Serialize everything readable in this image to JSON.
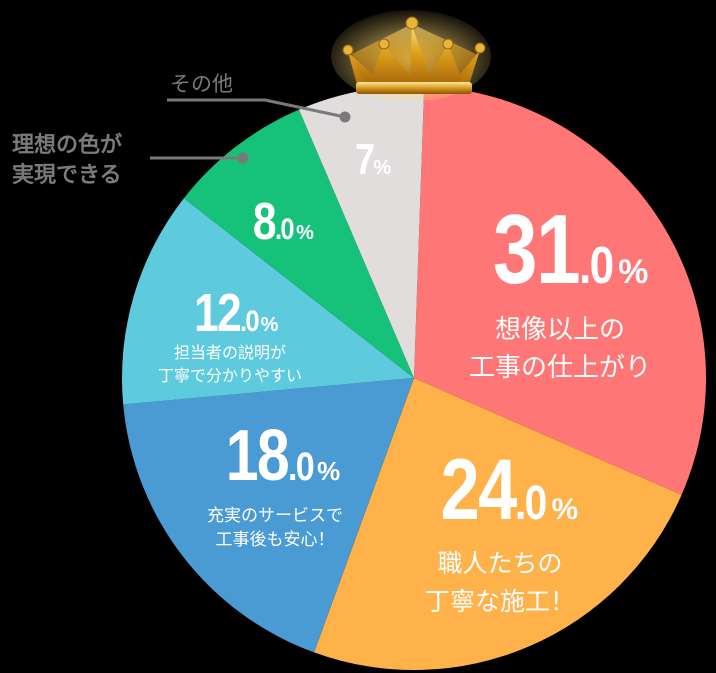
{
  "chart_data": {
    "type": "pie",
    "title": "",
    "start_angle_deg": 2,
    "direction": "clockwise",
    "slices": [
      {
        "label": "想像以上の工事の仕上がり",
        "value": 31.0,
        "display_int": "31",
        "display_dec": ".0",
        "display_pct": "%",
        "desc_lines": [
          "想像以上の",
          "工事の仕上がり"
        ],
        "color": "#FF7676"
      },
      {
        "label": "職人たちの丁寧な施工！",
        "value": 24.0,
        "display_int": "24",
        "display_dec": ".0",
        "display_pct": "%",
        "desc_lines": [
          "職人たちの",
          "丁寧な施工！"
        ],
        "color": "#FFB14A"
      },
      {
        "label": "充実のサービスで工事後も安心！",
        "value": 18.0,
        "display_int": "18",
        "display_dec": ".0",
        "display_pct": "%",
        "desc_lines": [
          "充実のサービスで",
          "工事後も安心！"
        ],
        "color": "#4A9BD3"
      },
      {
        "label": "担当者の説明が丁寧で分かりやすい",
        "value": 12.0,
        "display_int": "12",
        "display_dec": ".0",
        "display_pct": "%",
        "desc_lines": [
          "担当者の説明が",
          "丁寧で分かりやすい"
        ],
        "color": "#5ECADD"
      },
      {
        "label": "理想の色が実現できる",
        "value": 8.0,
        "display_int": "8",
        "display_dec": ".0",
        "display_pct": "%",
        "desc_lines": [
          "理想の色が",
          "実現できる"
        ],
        "color": "#16C27A"
      },
      {
        "label": "その他",
        "value": 7,
        "display_int": "7",
        "display_dec": "",
        "display_pct": "%",
        "desc_lines": [
          "その他"
        ],
        "color": "#E2DDDD"
      }
    ],
    "legend": "none",
    "annotations": [
      "crown above top of pie"
    ]
  },
  "outer_labels": {
    "other": "その他",
    "ideal_color_line1": "理想の色が",
    "ideal_color_line2": "実現できる",
    "leader_line_color": "#7a7a7a"
  },
  "crown_icon": "crown-icon"
}
